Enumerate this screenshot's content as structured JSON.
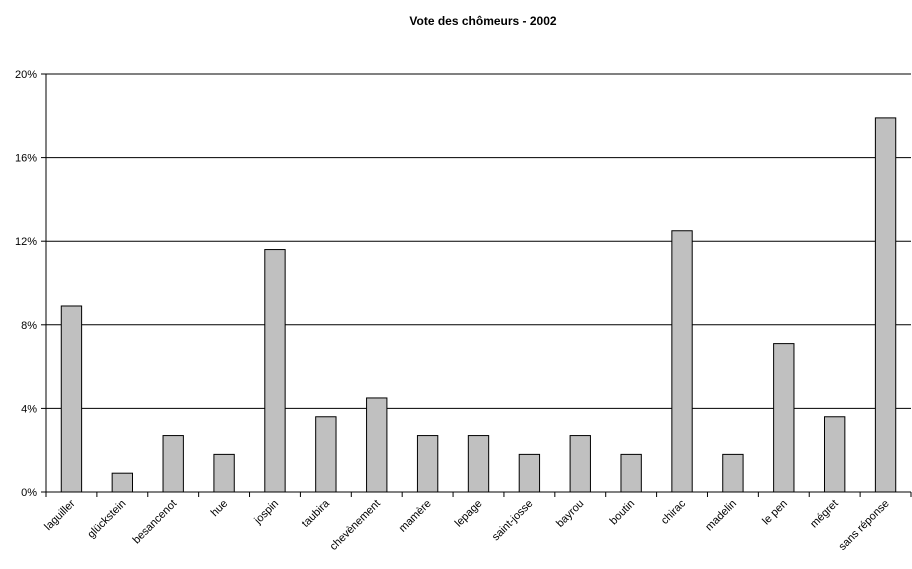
{
  "chart_data": {
    "type": "bar",
    "title": "Vote des chômeurs - 2002",
    "xlabel": "",
    "ylabel": "",
    "ylim": [
      0,
      20
    ],
    "yticks": [
      0,
      4,
      8,
      12,
      16,
      20
    ],
    "ytick_labels": [
      "0%",
      "4%",
      "8%",
      "12%",
      "16%",
      "20%"
    ],
    "grid": true,
    "legend": "none",
    "bar_color": "#c0c0c0",
    "categories": [
      "laguiller",
      "glückstein",
      "besancenot",
      "hue",
      "jospin",
      "taubira",
      "chevènement",
      "mamère",
      "lepage",
      "saint-josse",
      "bayrou",
      "boutin",
      "chirac",
      "madelin",
      "le pen",
      "mégret",
      "sans réponse"
    ],
    "values": [
      8.9,
      0.9,
      2.7,
      1.8,
      11.6,
      3.6,
      4.5,
      2.7,
      2.7,
      1.8,
      2.7,
      1.8,
      12.5,
      1.8,
      7.1,
      3.6,
      17.9
    ]
  }
}
